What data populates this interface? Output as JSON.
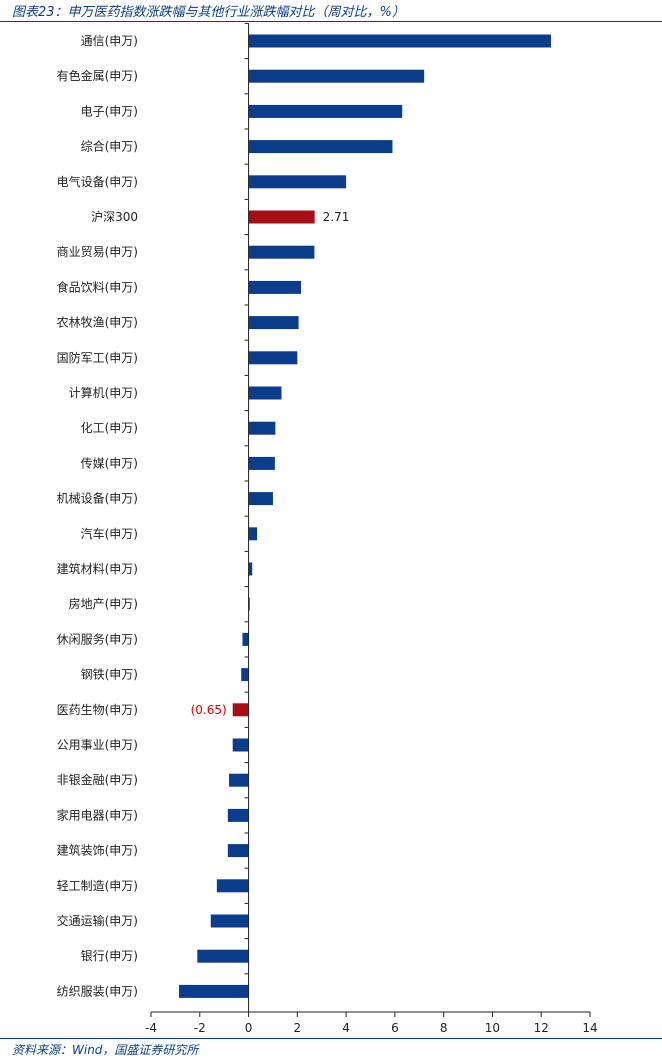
{
  "chart_title": "图表23：申万医药指数涨跌幅与其他行业涨跌幅对比（周对比，%）",
  "source": "资料来源：Wind，国盛证券研究所",
  "colors": {
    "default_bar": "#0b3d8c",
    "highlight_bar": "#a50f15",
    "highlight_label_negative": "#e00000",
    "axis": "#222222"
  },
  "chart_data": {
    "type": "bar",
    "orientation": "horizontal",
    "title": "图表23：申万医药指数涨跌幅与其他行业涨跌幅对比（周对比，%）",
    "xlabel": "",
    "ylabel": "",
    "xlim": [
      -4,
      14
    ],
    "xticks": [
      -4,
      -2,
      0,
      2,
      4,
      6,
      8,
      10,
      12,
      14
    ],
    "xtick_labels": [
      "-4",
      "-2",
      "0",
      "2",
      "4",
      "6",
      "8",
      "10",
      "12",
      "14"
    ],
    "grid": false,
    "legend": "none",
    "categories": [
      "通信(申万)",
      "有色金属(申万)",
      "电子(申万)",
      "综合(申万)",
      "电气设备(申万)",
      "沪深300",
      "商业贸易(申万)",
      "食品饮料(申万)",
      "农林牧渔(申万)",
      "国防军工(申万)",
      "计算机(申万)",
      "化工(申万)",
      "传媒(申万)",
      "机械设备(申万)",
      "汽车(申万)",
      "建筑材料(申万)",
      "房地产(申万)",
      "休闲服务(申万)",
      "钢铁(申万)",
      "医药生物(申万)",
      "公用事业(申万)",
      "非银金融(申万)",
      "家用电器(申万)",
      "建筑装饰(申万)",
      "轻工制造(申万)",
      "交通运输(申万)",
      "银行(申万)",
      "纺织服装(申万)"
    ],
    "values": [
      12.4,
      7.2,
      6.3,
      5.9,
      4.0,
      2.71,
      2.7,
      2.15,
      2.05,
      2.0,
      1.35,
      1.1,
      1.08,
      1.0,
      0.35,
      0.15,
      0.05,
      -0.25,
      -0.3,
      -0.65,
      -0.65,
      -0.8,
      -0.85,
      -0.85,
      -1.3,
      -1.55,
      -2.1,
      -2.85
    ],
    "highlighted": [
      "沪深300",
      "医药生物(申万)"
    ],
    "data_labels": [
      {
        "category": "沪深300",
        "text": "2.71"
      },
      {
        "category": "医药生物(申万)",
        "text": "(0.65)"
      }
    ]
  }
}
